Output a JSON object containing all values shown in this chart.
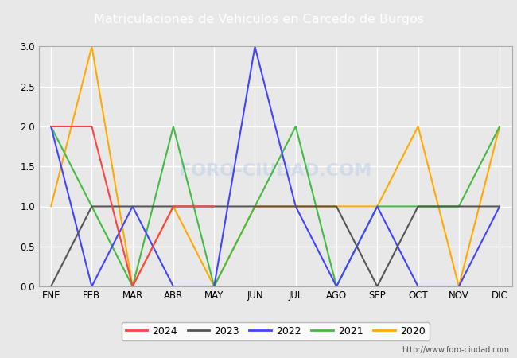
{
  "title": "Matriculaciones de Vehiculos en Carcedo de Burgos",
  "title_bg_color": "#4d7ebf",
  "title_text_color": "#ffffff",
  "months": [
    "ENE",
    "FEB",
    "MAR",
    "ABR",
    "MAY",
    "JUN",
    "JUL",
    "AGO",
    "SEP",
    "OCT",
    "NOV",
    "DIC"
  ],
  "series": {
    "2024": {
      "color": "#ff4444",
      "data": [
        2,
        2,
        0,
        1,
        1,
        null,
        null,
        null,
        null,
        null,
        null,
        null
      ]
    },
    "2023": {
      "color": "#555555",
      "data": [
        0,
        1,
        1,
        1,
        1,
        1,
        1,
        1,
        0,
        1,
        1,
        1
      ]
    },
    "2022": {
      "color": "#4444ff",
      "data": [
        2,
        0,
        1,
        0,
        0,
        3,
        1,
        0,
        1,
        0,
        0,
        1
      ]
    },
    "2021": {
      "color": "#44bb44",
      "data": [
        2,
        1,
        0,
        2,
        0,
        1,
        2,
        0,
        1,
        1,
        1,
        2
      ]
    },
    "2020": {
      "color": "#ffaa00",
      "data": [
        1,
        3,
        0,
        1,
        0,
        1,
        1,
        1,
        1,
        2,
        0,
        2
      ]
    }
  },
  "ylim": [
    0,
    3.0
  ],
  "yticks": [
    0.0,
    0.5,
    1.0,
    1.5,
    2.0,
    2.5,
    3.0
  ],
  "watermark_plot": "FORO-CIUDAD.COM",
  "watermark_url": "http://www.foro-ciudad.com",
  "bg_color": "#e8e8e8",
  "plot_bg_color": "#e8e8e8",
  "grid_color": "#ffffff",
  "legend_years": [
    "2024",
    "2023",
    "2022",
    "2021",
    "2020"
  ]
}
